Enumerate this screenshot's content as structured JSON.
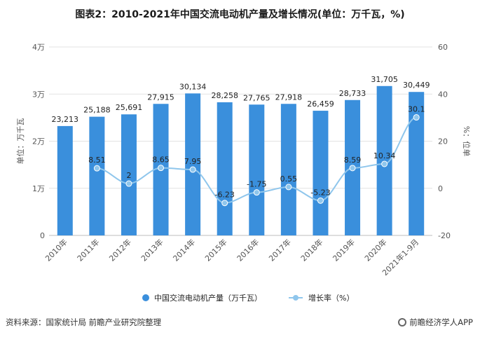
{
  "title": "图表2：2010-2021年中国交流电动机产量及增长情况(单位：万千瓦，%)",
  "footer": {
    "source": "资料来源：国家统计局 前瞻产业研究院整理",
    "brand": "前瞻经济学人APP"
  },
  "colors": {
    "bar": "#3a8fdc",
    "line": "#8fc6ec",
    "grid": "#e3e3e3"
  },
  "chart_data": {
    "type": "bar",
    "categories": [
      "2010年",
      "2011年",
      "2012年",
      "2013年",
      "2014年",
      "2015年",
      "2016年",
      "2017年",
      "2018年",
      "2019年",
      "2020年",
      "2021年1-9月"
    ],
    "series": [
      {
        "name": "中国交流电动机产量（万千瓦）",
        "type": "bar",
        "axis": "left",
        "values": [
          23213,
          25188,
          25691,
          27915,
          30134,
          28258,
          27765,
          27918,
          26459,
          28733,
          31705,
          30449
        ],
        "labels": [
          "23,213",
          "25,188",
          "25,691",
          "27,915",
          "30,134",
          "28,258",
          "27,765",
          "27,918",
          "26,459",
          "28,733",
          "31,705",
          "30,449"
        ]
      },
      {
        "name": "增长率（%）",
        "type": "line",
        "axis": "right",
        "values": [
          null,
          8.51,
          2,
          8.65,
          7.95,
          -6.23,
          -1.75,
          0.55,
          -5.23,
          8.59,
          10.34,
          30.1
        ],
        "labels": [
          "",
          "8.51",
          "2",
          "8.65",
          "7.95",
          "-6.23",
          "-1.75",
          "0.55",
          "-5.23",
          "8.59",
          "10.34",
          "30.1"
        ]
      }
    ],
    "ylabel": "单位：万千瓦",
    "y2label": "%：位单",
    "ylim": [
      0,
      40000
    ],
    "y_ticks": [
      "0",
      "1万",
      "2万",
      "3万",
      "4万"
    ],
    "y2lim": [
      -20,
      60
    ],
    "y2_ticks": [
      "-20",
      "0",
      "20",
      "40",
      "60"
    ],
    "grid": true,
    "legend_position": "bottom"
  }
}
